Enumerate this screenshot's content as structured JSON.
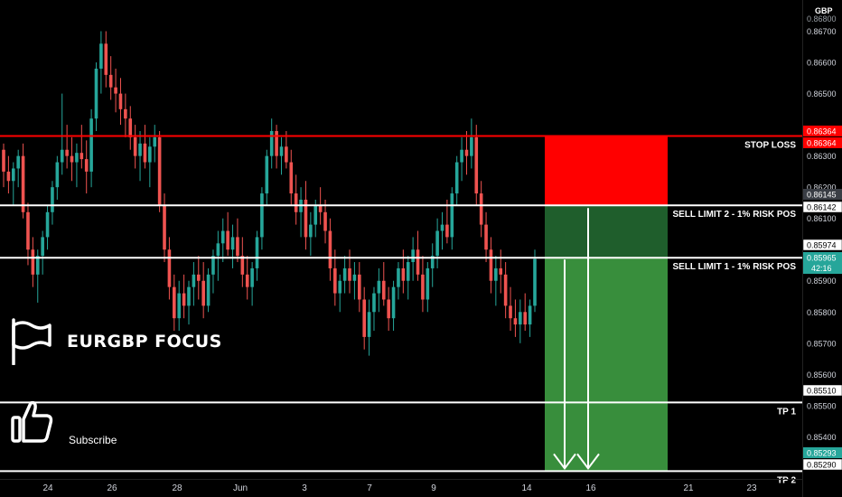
{
  "currency": "GBP",
  "brand": {
    "title": "EURGBP FOCUS",
    "subscribe_label": "Subscribe"
  },
  "colors": {
    "up": "#26a69a",
    "down": "#ef5350",
    "stop": "#ff0000",
    "line": "#ffffff",
    "stop_zone": "#ff0000",
    "entry_zone": "#1f5e2c",
    "profit_zone": "#388e3c"
  },
  "icons": [
    "flag-icon",
    "thumbs-up-icon"
  ],
  "chart_data": {
    "type": "candlestick",
    "symbol": "EURGBP",
    "ylim": [
      0.85265,
      0.868
    ],
    "y_ticks": [
      "0.86700",
      "0.86600",
      "0.86500",
      "0.86300",
      "0.86200",
      "0.86100",
      "0.85900",
      "0.85800",
      "0.85700",
      "0.85600",
      "0.85500",
      "0.85400"
    ],
    "y_top_partial": "0.86800",
    "x_ticks": [
      "24",
      "26",
      "28",
      "Jun",
      "3",
      "7",
      "9",
      "14",
      "16",
      "21",
      "23"
    ],
    "price_tags": [
      {
        "text": "0.86364",
        "style": "red"
      },
      {
        "text": "0.86364",
        "style": "red"
      },
      {
        "text": "0.86145",
        "style": "dark"
      },
      {
        "text": "0.86142",
        "style": "white"
      },
      {
        "text": "0.85974",
        "style": "white"
      },
      {
        "text": "0.85965",
        "sub": "42:16",
        "style": "green"
      },
      {
        "text": "0.85510",
        "style": "white"
      },
      {
        "text": "0.85293",
        "style": "green"
      },
      {
        "text": "0.85290",
        "style": "white"
      }
    ],
    "levels": [
      {
        "label": "STOP LOSS",
        "price": 0.86364,
        "color": "#ff0000"
      },
      {
        "label": "SELL LIMIT 2 - 1% RISK POS",
        "price": 0.86142,
        "color": "#ffffff"
      },
      {
        "label": "SELL LIMIT 1 - 1% RISK POS",
        "price": 0.85974,
        "color": "#ffffff"
      },
      {
        "label": "TP 1",
        "price": 0.8551,
        "color": "#ffffff"
      },
      {
        "label": "TP 2",
        "price": 0.8529,
        "color": "#ffffff"
      }
    ],
    "candles": [
      [
        0.8632,
        0.8634,
        0.862,
        0.8625
      ],
      [
        0.8625,
        0.863,
        0.8618,
        0.8622
      ],
      [
        0.8622,
        0.8628,
        0.8614,
        0.8626
      ],
      [
        0.8626,
        0.8632,
        0.862,
        0.863
      ],
      [
        0.863,
        0.8634,
        0.861,
        0.8612
      ],
      [
        0.8612,
        0.8615,
        0.8595,
        0.86
      ],
      [
        0.86,
        0.8604,
        0.8588,
        0.8592
      ],
      [
        0.8592,
        0.86,
        0.8583,
        0.8598
      ],
      [
        0.8598,
        0.8606,
        0.8592,
        0.8604
      ],
      [
        0.8604,
        0.8614,
        0.86,
        0.8612
      ],
      [
        0.8612,
        0.8622,
        0.8608,
        0.862
      ],
      [
        0.862,
        0.863,
        0.8616,
        0.8628
      ],
      [
        0.8628,
        0.865,
        0.8624,
        0.8632
      ],
      [
        0.8632,
        0.864,
        0.8626,
        0.863
      ],
      [
        0.863,
        0.8636,
        0.8622,
        0.8628
      ],
      [
        0.8628,
        0.8634,
        0.862,
        0.8631
      ],
      [
        0.8631,
        0.864,
        0.8626,
        0.8629
      ],
      [
        0.8629,
        0.8635,
        0.8618,
        0.8625
      ],
      [
        0.8625,
        0.8645,
        0.862,
        0.8642
      ],
      [
        0.8642,
        0.866,
        0.8638,
        0.8658
      ],
      [
        0.8658,
        0.867,
        0.865,
        0.8666
      ],
      [
        0.8666,
        0.867,
        0.8652,
        0.8656
      ],
      [
        0.8656,
        0.8662,
        0.8648,
        0.8652
      ],
      [
        0.8652,
        0.8658,
        0.8644,
        0.865
      ],
      [
        0.865,
        0.8655,
        0.864,
        0.8645
      ],
      [
        0.8645,
        0.865,
        0.8636,
        0.8642
      ],
      [
        0.8642,
        0.8646,
        0.8632,
        0.8636
      ],
      [
        0.8636,
        0.864,
        0.8626,
        0.863
      ],
      [
        0.863,
        0.8638,
        0.8622,
        0.8634
      ],
      [
        0.8634,
        0.864,
        0.8626,
        0.8628
      ],
      [
        0.8628,
        0.8636,
        0.862,
        0.8633
      ],
      [
        0.8633,
        0.864,
        0.8628,
        0.8636
      ],
      [
        0.8636,
        0.8638,
        0.8612,
        0.8614
      ],
      [
        0.8614,
        0.8618,
        0.8596,
        0.86
      ],
      [
        0.86,
        0.8604,
        0.8584,
        0.8588
      ],
      [
        0.8588,
        0.8592,
        0.8574,
        0.8578
      ],
      [
        0.8578,
        0.859,
        0.8574,
        0.8586
      ],
      [
        0.8586,
        0.8592,
        0.8578,
        0.8582
      ],
      [
        0.8582,
        0.859,
        0.8576,
        0.8588
      ],
      [
        0.8588,
        0.8596,
        0.8582,
        0.8592
      ],
      [
        0.8592,
        0.8598,
        0.8584,
        0.859
      ],
      [
        0.859,
        0.8596,
        0.8578,
        0.8582
      ],
      [
        0.8582,
        0.8594,
        0.858,
        0.8592
      ],
      [
        0.8592,
        0.86,
        0.8586,
        0.8598
      ],
      [
        0.8598,
        0.8606,
        0.859,
        0.8602
      ],
      [
        0.8602,
        0.861,
        0.8596,
        0.8606
      ],
      [
        0.8606,
        0.8612,
        0.8598,
        0.86
      ],
      [
        0.86,
        0.8608,
        0.8594,
        0.8604
      ],
      [
        0.8604,
        0.861,
        0.8596,
        0.8598
      ],
      [
        0.8598,
        0.8604,
        0.8588,
        0.8592
      ],
      [
        0.8592,
        0.8598,
        0.8584,
        0.8588
      ],
      [
        0.8588,
        0.8596,
        0.8582,
        0.8594
      ],
      [
        0.8594,
        0.8606,
        0.859,
        0.8604
      ],
      [
        0.8604,
        0.862,
        0.86,
        0.8618
      ],
      [
        0.8618,
        0.8632,
        0.8614,
        0.863
      ],
      [
        0.863,
        0.8642,
        0.8626,
        0.8638
      ],
      [
        0.8638,
        0.864,
        0.8626,
        0.863
      ],
      [
        0.863,
        0.8636,
        0.8624,
        0.8633
      ],
      [
        0.8633,
        0.8638,
        0.8626,
        0.8628
      ],
      [
        0.8628,
        0.8632,
        0.8614,
        0.8618
      ],
      [
        0.8618,
        0.8624,
        0.8608,
        0.8612
      ],
      [
        0.8612,
        0.862,
        0.8604,
        0.8616
      ],
      [
        0.8616,
        0.8622,
        0.86,
        0.8604
      ],
      [
        0.8604,
        0.8612,
        0.8598,
        0.8608
      ],
      [
        0.8608,
        0.8616,
        0.8604,
        0.8614
      ],
      [
        0.8614,
        0.862,
        0.8608,
        0.8612
      ],
      [
        0.8612,
        0.8616,
        0.8602,
        0.8606
      ],
      [
        0.8606,
        0.861,
        0.859,
        0.8594
      ],
      [
        0.8594,
        0.86,
        0.8582,
        0.8586
      ],
      [
        0.8586,
        0.8592,
        0.858,
        0.859
      ],
      [
        0.859,
        0.8598,
        0.8586,
        0.8594
      ],
      [
        0.8594,
        0.86,
        0.8586,
        0.859
      ],
      [
        0.859,
        0.8596,
        0.8584,
        0.8592
      ],
      [
        0.8592,
        0.8596,
        0.858,
        0.8584
      ],
      [
        0.8584,
        0.8588,
        0.8568,
        0.8572
      ],
      [
        0.8572,
        0.8584,
        0.8566,
        0.858
      ],
      [
        0.858,
        0.8588,
        0.8574,
        0.8586
      ],
      [
        0.8586,
        0.8594,
        0.858,
        0.859
      ],
      [
        0.859,
        0.8596,
        0.8582,
        0.8584
      ],
      [
        0.8584,
        0.8588,
        0.8574,
        0.8578
      ],
      [
        0.8578,
        0.859,
        0.8574,
        0.8588
      ],
      [
        0.8588,
        0.8596,
        0.8584,
        0.8594
      ],
      [
        0.8594,
        0.86,
        0.8586,
        0.859
      ],
      [
        0.859,
        0.8598,
        0.8584,
        0.8596
      ],
      [
        0.8596,
        0.8604,
        0.859,
        0.86
      ],
      [
        0.86,
        0.8606,
        0.859,
        0.8592
      ],
      [
        0.8592,
        0.8598,
        0.858,
        0.8584
      ],
      [
        0.8584,
        0.8596,
        0.858,
        0.8594
      ],
      [
        0.8594,
        0.8602,
        0.8588,
        0.8598
      ],
      [
        0.8598,
        0.861,
        0.8594,
        0.8606
      ],
      [
        0.8606,
        0.8612,
        0.86,
        0.8608
      ],
      [
        0.8608,
        0.8616,
        0.8602,
        0.8604
      ],
      [
        0.8604,
        0.862,
        0.86,
        0.8618
      ],
      [
        0.8618,
        0.863,
        0.8614,
        0.8628
      ],
      [
        0.8628,
        0.8636,
        0.8622,
        0.8632
      ],
      [
        0.8632,
        0.8638,
        0.8624,
        0.863
      ],
      [
        0.863,
        0.8642,
        0.8626,
        0.8636
      ],
      [
        0.8636,
        0.864,
        0.8614,
        0.8618
      ],
      [
        0.8618,
        0.8622,
        0.8604,
        0.8608
      ],
      [
        0.8608,
        0.8612,
        0.8596,
        0.86
      ],
      [
        0.86,
        0.8604,
        0.8586,
        0.859
      ],
      [
        0.859,
        0.8598,
        0.8582,
        0.8594
      ],
      [
        0.8594,
        0.86,
        0.8586,
        0.8592
      ],
      [
        0.8592,
        0.8596,
        0.8578,
        0.8582
      ],
      [
        0.8582,
        0.8588,
        0.8574,
        0.8578
      ],
      [
        0.8578,
        0.8584,
        0.8572,
        0.8576
      ],
      [
        0.8576,
        0.8584,
        0.857,
        0.858
      ],
      [
        0.858,
        0.8586,
        0.8574,
        0.8576
      ],
      [
        0.8576,
        0.8584,
        0.8572,
        0.8582
      ],
      [
        0.8582,
        0.86,
        0.858,
        0.8597
      ]
    ]
  }
}
